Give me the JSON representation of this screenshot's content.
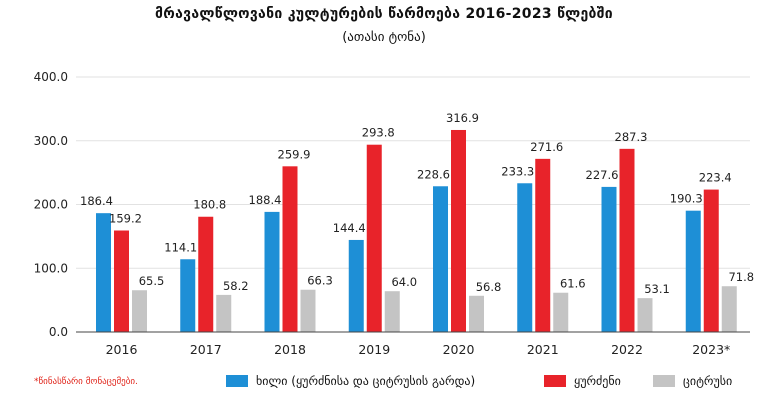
{
  "title": "მრავალწლოვანი კულტურების წარმოება 2016-2023 წლებში",
  "subtitle": "(ათასი ტონა)",
  "footnote": "*წინასწარი მონაცემები.",
  "colors": {
    "fruit": "#1e8fd6",
    "grapes": "#e8232a",
    "citrus": "#c4c4c4",
    "grid": "#e2e2e2",
    "axis": "#444444"
  },
  "chart_data": {
    "type": "bar",
    "categories": [
      "2016",
      "2017",
      "2018",
      "2019",
      "2020",
      "2021",
      "2022",
      "2023*"
    ],
    "ylim": [
      0,
      400
    ],
    "yticks": [
      "0.0",
      "100.0",
      "200.0",
      "300.0",
      "400.0"
    ],
    "grid": true,
    "legend_position": "bottom",
    "series": [
      {
        "name": "ხილი (ყურძნისა და ციტრუსის გარდა)",
        "values": [
          186.4,
          114.1,
          188.4,
          144.4,
          228.6,
          233.3,
          227.6,
          190.3
        ]
      },
      {
        "name": "ყურძენი",
        "values": [
          159.2,
          180.8,
          259.9,
          293.8,
          316.9,
          271.6,
          287.3,
          223.4
        ]
      },
      {
        "name": "ციტრუსი",
        "values": [
          65.5,
          58.2,
          66.3,
          64.0,
          56.8,
          61.6,
          53.1,
          71.8
        ]
      }
    ]
  }
}
